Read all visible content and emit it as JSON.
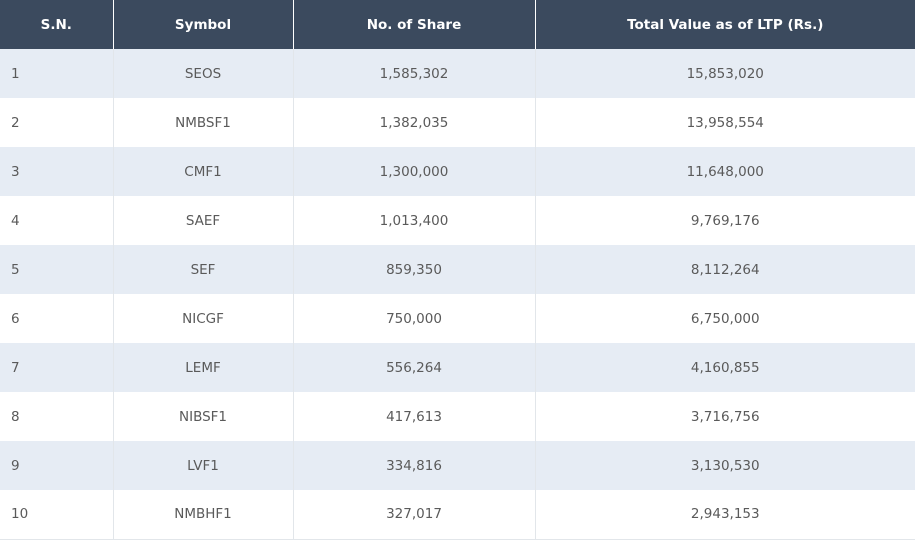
{
  "table": {
    "headers": {
      "sn": "S.N.",
      "symbol": "Symbol",
      "shares": "No. of Share",
      "value": "Total Value as of LTP (Rs.)"
    },
    "rows": [
      {
        "sn": "1",
        "symbol": "SEOS",
        "shares": "1,585,302",
        "value": "15,853,020"
      },
      {
        "sn": "2",
        "symbol": "NMBSF1",
        "shares": "1,382,035",
        "value": "13,958,554"
      },
      {
        "sn": "3",
        "symbol": "CMF1",
        "shares": "1,300,000",
        "value": "11,648,000"
      },
      {
        "sn": "4",
        "symbol": "SAEF",
        "shares": "1,013,400",
        "value": "9,769,176"
      },
      {
        "sn": "5",
        "symbol": "SEF",
        "shares": "859,350",
        "value": "8,112,264"
      },
      {
        "sn": "6",
        "symbol": "NICGF",
        "shares": "750,000",
        "value": "6,750,000"
      },
      {
        "sn": "7",
        "symbol": "LEMF",
        "shares": "556,264",
        "value": "4,160,855"
      },
      {
        "sn": "8",
        "symbol": "NIBSF1",
        "shares": "417,613",
        "value": "3,716,756"
      },
      {
        "sn": "9",
        "symbol": "LVF1",
        "shares": "334,816",
        "value": "3,130,530"
      },
      {
        "sn": "10",
        "symbol": "NMBHF1",
        "shares": "327,017",
        "value": "2,943,153"
      }
    ]
  },
  "colors": {
    "header_bg": "#3b4a5e",
    "header_text": "#ffffff",
    "row_alt_bg": "#e6ecf4",
    "row_bg": "#ffffff",
    "cell_text": "#5a5a5a"
  }
}
